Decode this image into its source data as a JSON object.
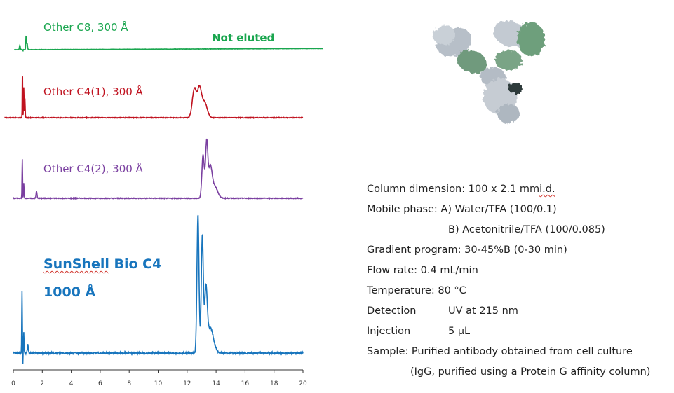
{
  "colors": {
    "c8": "#1aa64f",
    "c4_1": "#c0121f",
    "c4_2": "#7a3fa0",
    "sunshell": "#1875bd",
    "axis": "#333333"
  },
  "chart_data": {
    "type": "line",
    "title": "",
    "xlabel": "",
    "ylabel": "",
    "xlim": [
      0,
      20
    ],
    "x_ticks": [
      0,
      2,
      4,
      6,
      8,
      10,
      12,
      14,
      16,
      18,
      20
    ],
    "x_tick_labels": [
      "0",
      "2",
      "4",
      "6",
      "8",
      "10",
      "12",
      "14",
      "16",
      "18",
      "20"
    ],
    "annotations": [
      "Not eluted"
    ],
    "series": [
      {
        "name": "Other C8, 300 Å",
        "color": "#1aa64f",
        "x_end": 21.5,
        "peaks": [
          [
            0.45,
            0.2,
            0.03
          ],
          [
            0.88,
            0.62,
            0.02
          ],
          [
            0.95,
            0.28,
            0.03
          ]
        ],
        "drift": 0.05
      },
      {
        "name": "Other C4(1), 300 Å",
        "color": "#c0121f",
        "x_end": 20,
        "peaks": [
          [
            0.63,
            0.95,
            0.015
          ],
          [
            0.72,
            0.55,
            0.02
          ],
          [
            0.8,
            0.35,
            0.02
          ],
          [
            12.5,
            0.52,
            0.14
          ],
          [
            12.85,
            0.52,
            0.14
          ],
          [
            13.2,
            0.28,
            0.18
          ]
        ],
        "drift": 0
      },
      {
        "name": "Other C4(2), 300 Å",
        "color": "#7a3fa0",
        "x_end": 20,
        "peaks": [
          [
            0.62,
            0.65,
            0.02
          ],
          [
            0.72,
            0.25,
            0.02
          ],
          [
            1.6,
            0.12,
            0.03
          ],
          [
            13.1,
            0.72,
            0.08
          ],
          [
            13.35,
            0.92,
            0.08
          ],
          [
            13.6,
            0.48,
            0.12
          ],
          [
            13.9,
            0.2,
            0.2
          ]
        ],
        "drift": 0
      },
      {
        "name": "SunShell Bio C4 1000 Å",
        "color": "#1875bd",
        "x_end": 20,
        "peaks": [
          [
            0.6,
            0.45,
            0.02
          ],
          [
            0.72,
            0.15,
            0.02
          ],
          [
            1.0,
            0.06,
            0.03
          ],
          [
            12.75,
            1.0,
            0.07
          ],
          [
            13.05,
            0.84,
            0.07
          ],
          [
            13.3,
            0.42,
            0.09
          ],
          [
            13.6,
            0.18,
            0.22
          ]
        ],
        "drift": 0
      }
    ]
  },
  "labels": {
    "c8": "Other C8, 300 Å",
    "c4_1": "Other C4(1), 300 Å",
    "c4_2": "Other C4(2), 300 Å",
    "not_eluted": "Not eluted",
    "sunshell_name_a": "SunShell",
    "sunshell_name_b": " Bio C4",
    "sunshell_pore": "1000 Å"
  },
  "conditions": {
    "column_a": "Column dimension: 100 x 2.1 mm ",
    "column_b": "i.d.",
    "mobile": "Mobile phase: A) Water/TFA (100/0.1)",
    "mobile_b": "B) Acetonitrile/TFA (100/0.085)",
    "gradient": "Gradient program:  30-45%B (0-30 min)",
    "flow": "Flow rate: 0.4 mL/min",
    "temp": "Temperature: 80 °C",
    "detection_label": "Detection",
    "detection_value": "UV at 215 nm",
    "injection_label": "Injection",
    "injection_value": "5 µL",
    "sample": "Sample: Purified antibody obtained from cell culture",
    "sample_b": "(IgG, purified using a Protein G affinity column)"
  }
}
